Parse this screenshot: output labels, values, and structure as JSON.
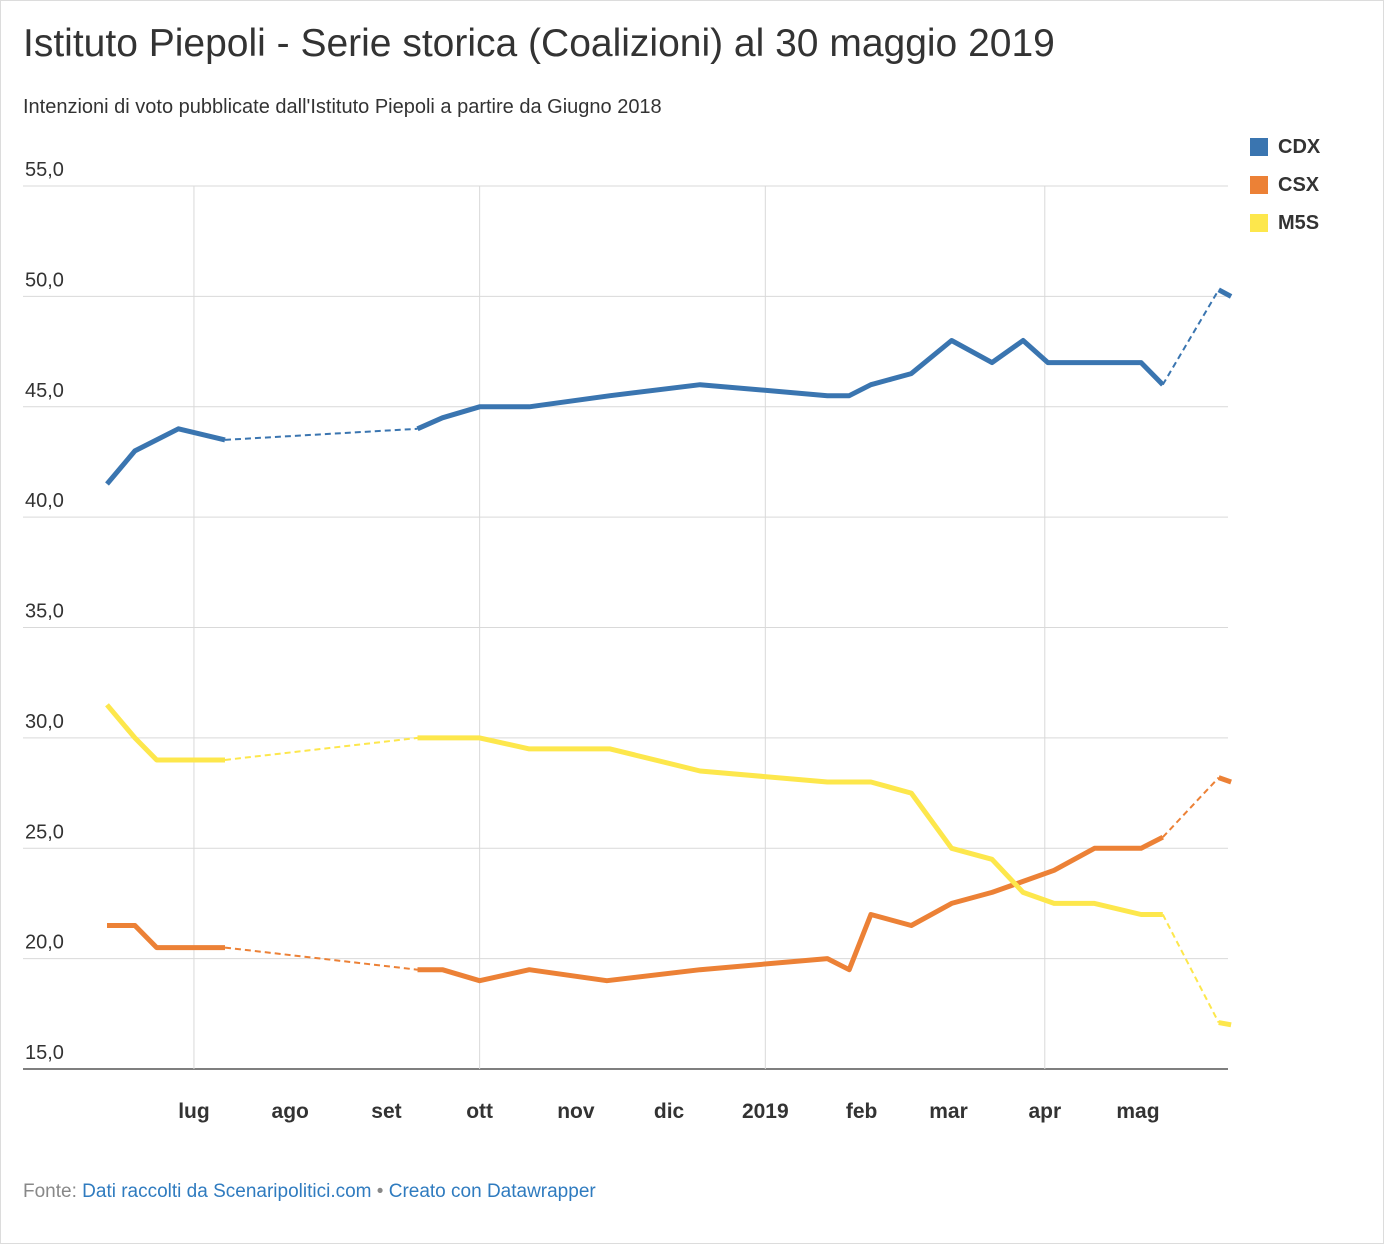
{
  "title": "Istituto Piepoli - Serie storica (Coalizioni) al 30 maggio 2019",
  "subtitle": "Intenzioni di voto pubblicate dall'Istituto Piepoli a partire da Giugno 2018",
  "footer": {
    "source_label": "Fonte:",
    "source_link": "Dati raccolti da Scenaripolitici.com",
    "separator": "•",
    "credit_link": "Creato con Datawrapper"
  },
  "chart_data": {
    "type": "line",
    "title": "Istituto Piepoli - Serie storica (Coalizioni) al 30 maggio 2019",
    "subtitle": "Intenzioni di voto pubblicate dall'Istituto Piepoli a partire da Giugno 2018",
    "xlabel": "",
    "ylabel": "",
    "ylim": [
      15,
      55
    ],
    "xlim": [
      "2018-06-03",
      "2019-05-30"
    ],
    "y_ticks": [
      "55,0",
      "50,0",
      "45,0",
      "40,0",
      "35,0",
      "30,0",
      "25,0",
      "20,0",
      "15,0"
    ],
    "y_tick_values": [
      55,
      50,
      45,
      40,
      35,
      30,
      25,
      20,
      15
    ],
    "x_ticks": [
      {
        "label": "lug",
        "date": "2018-07-01",
        "gridline": true
      },
      {
        "label": "ago",
        "date": "2018-08-01",
        "gridline": false
      },
      {
        "label": "set",
        "date": "2018-09-01",
        "gridline": false
      },
      {
        "label": "ott",
        "date": "2018-10-01",
        "gridline": true
      },
      {
        "label": "nov",
        "date": "2018-11-01",
        "gridline": false
      },
      {
        "label": "dic",
        "date": "2018-12-01",
        "gridline": false
      },
      {
        "label": "2019",
        "date": "2019-01-01",
        "gridline": true
      },
      {
        "label": "feb",
        "date": "2019-02-01",
        "gridline": false
      },
      {
        "label": "mar",
        "date": "2019-03-01",
        "gridline": false
      },
      {
        "label": "apr",
        "date": "2019-04-01",
        "gridline": true
      },
      {
        "label": "mag",
        "date": "2019-05-01",
        "gridline": false
      }
    ],
    "grid": true,
    "legend_position": "top-right",
    "dashed_gaps": true,
    "series": [
      {
        "name": "CDX",
        "color": "#3a75b0",
        "points": [
          {
            "x": "2018-06-03",
            "y": 41.5
          },
          {
            "x": "2018-06-12",
            "y": 43.0
          },
          {
            "x": "2018-06-26",
            "y": 44.0
          },
          {
            "x": "2018-07-11",
            "y": 43.5
          },
          {
            "x": "2018-09-11",
            "y": 44.0,
            "gap_before": true
          },
          {
            "x": "2018-09-19",
            "y": 44.5
          },
          {
            "x": "2018-10-01",
            "y": 45.0
          },
          {
            "x": "2018-10-17",
            "y": 45.0
          },
          {
            "x": "2018-11-12",
            "y": 45.5
          },
          {
            "x": "2018-12-11",
            "y": 46.0
          },
          {
            "x": "2019-01-21",
            "y": 45.5
          },
          {
            "x": "2019-01-28",
            "y": 45.5
          },
          {
            "x": "2019-02-04",
            "y": 46.0
          },
          {
            "x": "2019-02-17",
            "y": 46.5
          },
          {
            "x": "2019-03-02",
            "y": 48.0
          },
          {
            "x": "2019-03-15",
            "y": 47.0
          },
          {
            "x": "2019-03-25",
            "y": 48.0
          },
          {
            "x": "2019-04-02",
            "y": 47.0
          },
          {
            "x": "2019-04-17",
            "y": 47.0
          },
          {
            "x": "2019-05-02",
            "y": 47.0
          },
          {
            "x": "2019-05-09",
            "y": 46.0
          },
          {
            "x": "2019-05-27",
            "y": 50.3,
            "gap_before": true
          },
          {
            "x": "2019-05-31",
            "y": 50.0
          }
        ]
      },
      {
        "name": "CSX",
        "color": "#ec8136",
        "points": [
          {
            "x": "2018-06-03",
            "y": 21.5
          },
          {
            "x": "2018-06-12",
            "y": 21.5
          },
          {
            "x": "2018-06-19",
            "y": 20.5
          },
          {
            "x": "2018-07-11",
            "y": 20.5
          },
          {
            "x": "2018-09-11",
            "y": 19.5,
            "gap_before": true
          },
          {
            "x": "2018-09-19",
            "y": 19.5
          },
          {
            "x": "2018-10-01",
            "y": 19.0
          },
          {
            "x": "2018-10-17",
            "y": 19.5
          },
          {
            "x": "2018-11-11",
            "y": 19.0
          },
          {
            "x": "2018-12-11",
            "y": 19.5
          },
          {
            "x": "2019-01-21",
            "y": 20.0
          },
          {
            "x": "2019-01-28",
            "y": 19.5
          },
          {
            "x": "2019-02-04",
            "y": 22.0
          },
          {
            "x": "2019-02-17",
            "y": 21.5
          },
          {
            "x": "2019-03-02",
            "y": 22.5
          },
          {
            "x": "2019-03-15",
            "y": 23.0
          },
          {
            "x": "2019-03-25",
            "y": 23.5
          },
          {
            "x": "2019-04-04",
            "y": 24.0
          },
          {
            "x": "2019-04-17",
            "y": 25.0
          },
          {
            "x": "2019-05-02",
            "y": 25.0
          },
          {
            "x": "2019-05-09",
            "y": 25.5
          },
          {
            "x": "2019-05-27",
            "y": 28.2,
            "gap_before": true
          },
          {
            "x": "2019-05-31",
            "y": 28.0
          }
        ]
      },
      {
        "name": "M5S",
        "color": "#fde74c",
        "points": [
          {
            "x": "2018-06-03",
            "y": 31.5
          },
          {
            "x": "2018-06-12",
            "y": 30.0
          },
          {
            "x": "2018-06-19",
            "y": 29.0
          },
          {
            "x": "2018-07-11",
            "y": 29.0
          },
          {
            "x": "2018-09-11",
            "y": 30.0,
            "gap_before": true
          },
          {
            "x": "2018-10-01",
            "y": 30.0
          },
          {
            "x": "2018-10-17",
            "y": 29.5
          },
          {
            "x": "2018-11-12",
            "y": 29.5
          },
          {
            "x": "2018-12-11",
            "y": 28.5
          },
          {
            "x": "2019-01-21",
            "y": 28.0
          },
          {
            "x": "2019-02-04",
            "y": 28.0
          },
          {
            "x": "2019-02-17",
            "y": 27.5
          },
          {
            "x": "2019-03-02",
            "y": 25.0
          },
          {
            "x": "2019-03-15",
            "y": 24.5
          },
          {
            "x": "2019-03-25",
            "y": 23.0
          },
          {
            "x": "2019-04-04",
            "y": 22.5
          },
          {
            "x": "2019-04-17",
            "y": 22.5
          },
          {
            "x": "2019-05-02",
            "y": 22.0
          },
          {
            "x": "2019-05-09",
            "y": 22.0
          },
          {
            "x": "2019-05-27",
            "y": 17.1,
            "gap_before": true
          },
          {
            "x": "2019-05-31",
            "y": 17.0
          }
        ]
      }
    ]
  }
}
